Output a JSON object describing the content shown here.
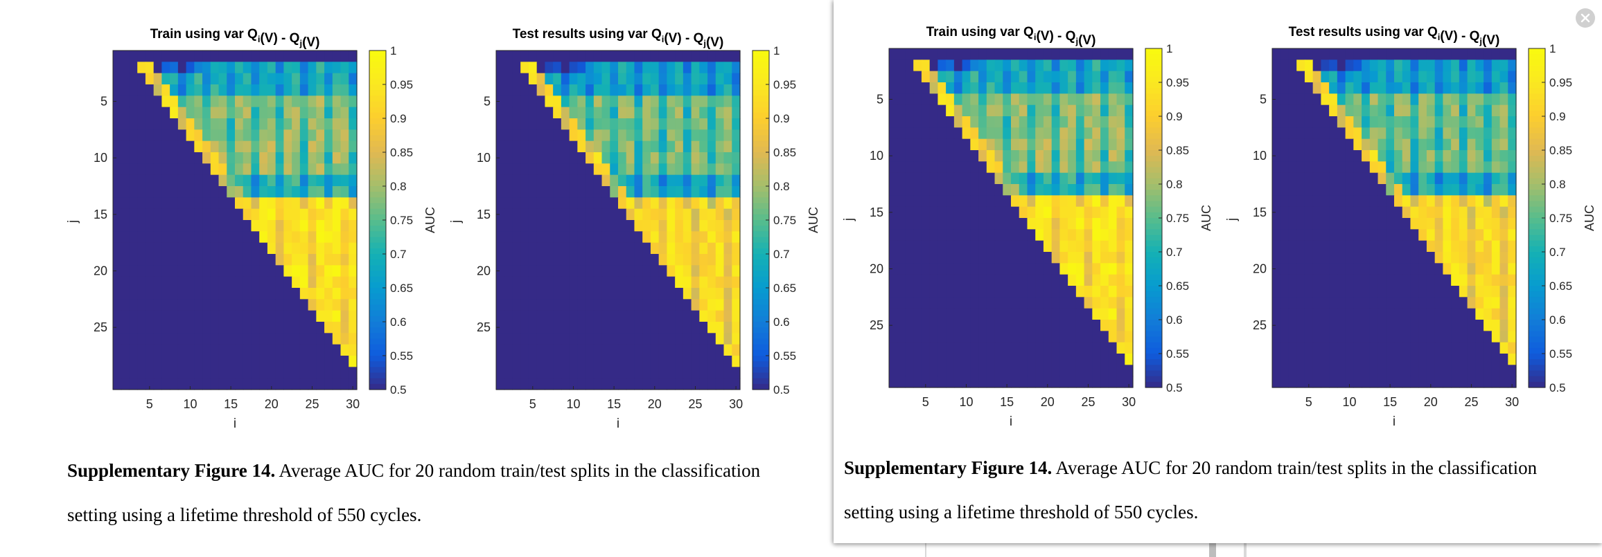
{
  "panels": [
    {
      "id": "left",
      "plots": [
        {
          "title_pre": "Train using var Q",
          "title_i": "i",
          "title_mid": "(V) - Q",
          "title_j": "j",
          "title_post": "(V)"
        },
        {
          "title_pre": "Test results using var Q",
          "title_i": "i",
          "title_mid": "(V) - Q",
          "title_j": "j",
          "title_post": "(V)"
        }
      ],
      "caption": {
        "bold": "Supplementary Figure 14.",
        "line1": " Average AUC for 20 random train/test splits in the classification",
        "line2": "setting using a lifetime threshold of 550 cycles."
      }
    },
    {
      "id": "right",
      "plots": [
        {
          "title_pre": "Train using var Q",
          "title_i": "i",
          "title_mid": "(V) - Q",
          "title_j": "j",
          "title_post": "(V)"
        },
        {
          "title_pre": "Test results using var Q",
          "title_i": "i",
          "title_mid": "(V) - Q",
          "title_j": "j",
          "title_post": "(V)"
        }
      ],
      "caption": {
        "bold": "Supplementary Figure 14.",
        "line1": " Average AUC for 20 random train/test splits in the classification",
        "line2": "setting using a lifetime threshold of 550 cycles."
      }
    }
  ],
  "close_icon": "close-icon",
  "chart_data": [
    {
      "type": "heatmap",
      "title": "Train using var Qi(V) - Qj(V)",
      "xlabel": "i",
      "ylabel": "j",
      "xticks": [
        5,
        10,
        15,
        20,
        25,
        30
      ],
      "yticks": [
        5,
        10,
        15,
        20,
        25
      ],
      "xlim": [
        1,
        30
      ],
      "ylim": [
        1,
        30
      ],
      "colorbar": {
        "label": "AUC",
        "range": [
          0.5,
          1
        ],
        "ticks": [
          "1",
          "0.95",
          "0.9",
          "0.85",
          "0.8",
          "0.75",
          "0.7",
          "0.65",
          "0.6",
          "0.55",
          "0.5"
        ]
      },
      "colormap": "parula",
      "region": "upper-triangle i>j contains AUC values, lower triangle = 0.5",
      "values_by_region": {
        "near_top_j_1_4": 0.7,
        "middle_j_5_13": 0.8,
        "lower_j_14_30": 0.95
      }
    },
    {
      "type": "heatmap",
      "title": "Test results using var Qi(V) - Qj(V)",
      "xlabel": "i",
      "ylabel": "j",
      "xticks": [
        5,
        10,
        15,
        20,
        25,
        30
      ],
      "yticks": [
        5,
        10,
        15,
        20,
        25
      ],
      "xlim": [
        1,
        30
      ],
      "ylim": [
        1,
        30
      ],
      "colorbar": {
        "label": "AUC",
        "range": [
          0.5,
          1
        ],
        "ticks": [
          "1",
          "0.95",
          "0.9",
          "0.85",
          "0.8",
          "0.75",
          "0.7",
          "0.65",
          "0.6",
          "0.55",
          "0.5"
        ]
      },
      "colormap": "parula",
      "region": "upper-triangle i>j contains AUC values, lower triangle = 0.5",
      "values_by_region": {
        "near_top_j_1_4": 0.68,
        "middle_j_5_13": 0.78,
        "lower_j_14_30": 0.93
      }
    }
  ]
}
